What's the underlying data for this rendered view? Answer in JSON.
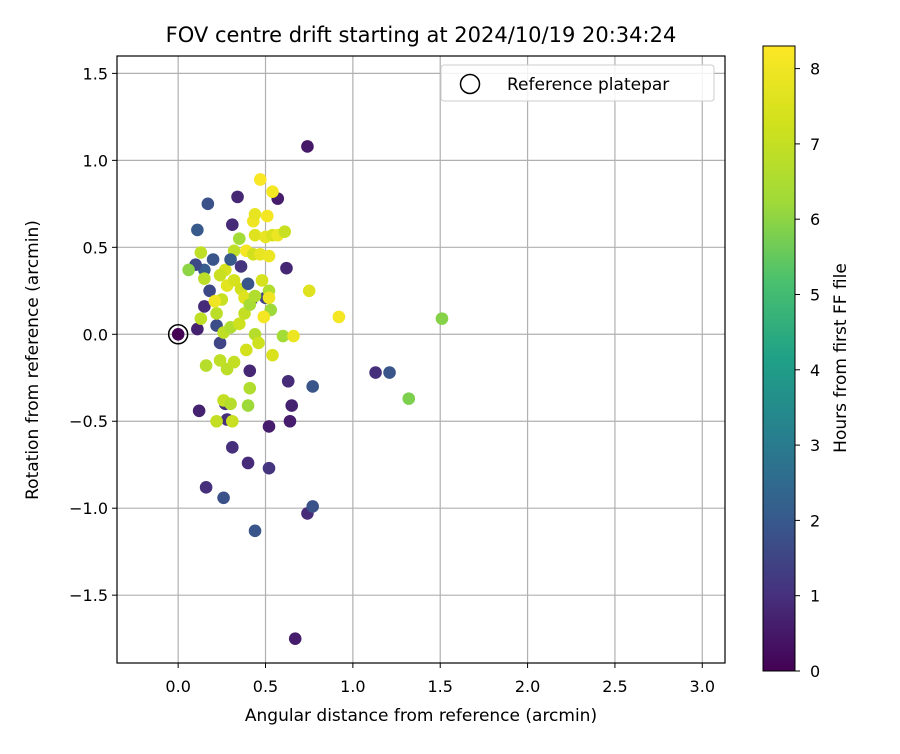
{
  "chart_data": {
    "type": "scatter",
    "title": "FOV centre drift starting at 2024/10/19 20:34:24",
    "xlabel": "Angular distance from reference (arcmin)",
    "ylabel": "Rotation from reference (arcmin)",
    "xlim": [
      -0.35,
      3.13
    ],
    "ylim": [
      -1.89,
      1.6
    ],
    "xticks": [
      0.0,
      0.5,
      1.0,
      1.5,
      2.0,
      2.5,
      3.0
    ],
    "xtick_labels": [
      "0.0",
      "0.5",
      "1.0",
      "1.5",
      "2.0",
      "2.5",
      "3.0"
    ],
    "yticks": [
      -1.5,
      -1.0,
      -0.5,
      0.0,
      0.5,
      1.0,
      1.5
    ],
    "ytick_labels": [
      "−1.5",
      "−1.0",
      "−0.5",
      "0.0",
      "0.5",
      "1.0",
      "1.5"
    ],
    "grid": true,
    "legend": {
      "position": "top-right",
      "entries": [
        "Reference platepar"
      ]
    },
    "reference_point": {
      "x": 0.0,
      "y": 0.0,
      "marker": "open-circle"
    },
    "colorbar": {
      "label": "Hours from first FF file",
      "range": [
        0,
        8.3
      ],
      "ticks": [
        0,
        1,
        2,
        3,
        4,
        5,
        6,
        7,
        8
      ],
      "tick_labels": [
        "0",
        "1",
        "2",
        "3",
        "4",
        "5",
        "6",
        "7",
        "8"
      ],
      "colormap": "viridis"
    },
    "points": [
      {
        "x": 0.0,
        "y": 0.0,
        "t": 0.0
      },
      {
        "x": 0.74,
        "y": 1.08,
        "t": 0.5
      },
      {
        "x": 0.34,
        "y": 0.79,
        "t": 0.8
      },
      {
        "x": 0.57,
        "y": 0.78,
        "t": 0.6
      },
      {
        "x": 0.31,
        "y": 0.63,
        "t": 0.9
      },
      {
        "x": 0.62,
        "y": 0.38,
        "t": 0.8
      },
      {
        "x": 0.63,
        "y": -0.27,
        "t": 0.9
      },
      {
        "x": 0.65,
        "y": -0.41,
        "t": 0.7
      },
      {
        "x": 0.64,
        "y": -0.5,
        "t": 0.6
      },
      {
        "x": 0.52,
        "y": -0.53,
        "t": 0.6
      },
      {
        "x": 0.31,
        "y": -0.65,
        "t": 1.0
      },
      {
        "x": 0.4,
        "y": -0.74,
        "t": 0.9
      },
      {
        "x": 0.52,
        "y": -0.77,
        "t": 1.1
      },
      {
        "x": 0.16,
        "y": -0.88,
        "t": 1.0
      },
      {
        "x": 0.26,
        "y": -0.94,
        "t": 1.8
      },
      {
        "x": 0.44,
        "y": -1.13,
        "t": 1.9
      },
      {
        "x": 0.74,
        "y": -1.03,
        "t": 0.9
      },
      {
        "x": 0.77,
        "y": -0.99,
        "t": 1.8
      },
      {
        "x": 0.67,
        "y": -1.75,
        "t": 0.6
      },
      {
        "x": 0.12,
        "y": -0.44,
        "t": 0.7
      },
      {
        "x": 0.27,
        "y": -0.4,
        "t": 1.0
      },
      {
        "x": 0.28,
        "y": -0.49,
        "t": 1.0
      },
      {
        "x": 0.41,
        "y": -0.21,
        "t": 0.8
      },
      {
        "x": 0.77,
        "y": -0.3,
        "t": 1.9
      },
      {
        "x": 1.13,
        "y": -0.22,
        "t": 1.0
      },
      {
        "x": 1.21,
        "y": -0.22,
        "t": 1.9
      },
      {
        "x": 1.32,
        "y": -0.37,
        "t": 5.8
      },
      {
        "x": 1.51,
        "y": 0.09,
        "t": 5.9
      },
      {
        "x": 0.17,
        "y": 0.75,
        "t": 1.8
      },
      {
        "x": 0.11,
        "y": 0.6,
        "t": 2.0
      },
      {
        "x": 0.15,
        "y": 0.37,
        "t": 2.1
      },
      {
        "x": 0.2,
        "y": 0.43,
        "t": 1.9
      },
      {
        "x": 0.1,
        "y": 0.4,
        "t": 1.6
      },
      {
        "x": 0.18,
        "y": 0.25,
        "t": 1.6
      },
      {
        "x": 0.15,
        "y": 0.16,
        "t": 0.9
      },
      {
        "x": 0.11,
        "y": 0.03,
        "t": 0.7
      },
      {
        "x": 0.22,
        "y": 0.05,
        "t": 1.7
      },
      {
        "x": 0.24,
        "y": -0.05,
        "t": 1.5
      },
      {
        "x": 0.42,
        "y": 0.2,
        "t": 1.2
      },
      {
        "x": 0.5,
        "y": 0.21,
        "t": 1.5
      },
      {
        "x": 0.06,
        "y": 0.37,
        "t": 6.0
      },
      {
        "x": 0.13,
        "y": 0.47,
        "t": 6.9
      },
      {
        "x": 0.15,
        "y": 0.32,
        "t": 6.8
      },
      {
        "x": 0.13,
        "y": 0.09,
        "t": 6.9
      },
      {
        "x": 0.16,
        "y": -0.18,
        "t": 6.7
      },
      {
        "x": 0.22,
        "y": -0.5,
        "t": 7.0
      },
      {
        "x": 0.31,
        "y": -0.5,
        "t": 7.1
      },
      {
        "x": 0.26,
        "y": -0.38,
        "t": 7.0
      },
      {
        "x": 0.3,
        "y": -0.4,
        "t": 6.7
      },
      {
        "x": 0.4,
        "y": -0.41,
        "t": 6.2
      },
      {
        "x": 0.41,
        "y": -0.31,
        "t": 6.6
      },
      {
        "x": 0.28,
        "y": -0.2,
        "t": 6.8
      },
      {
        "x": 0.24,
        "y": -0.15,
        "t": 6.9
      },
      {
        "x": 0.32,
        "y": -0.16,
        "t": 7.0
      },
      {
        "x": 0.39,
        "y": -0.09,
        "t": 7.3
      },
      {
        "x": 0.54,
        "y": -0.12,
        "t": 7.5
      },
      {
        "x": 0.6,
        "y": -0.01,
        "t": 6.3
      },
      {
        "x": 0.66,
        "y": -0.01,
        "t": 7.9
      },
      {
        "x": 0.26,
        "y": 0.01,
        "t": 6.9
      },
      {
        "x": 0.3,
        "y": 0.04,
        "t": 6.6
      },
      {
        "x": 0.35,
        "y": 0.06,
        "t": 7.2
      },
      {
        "x": 0.38,
        "y": 0.12,
        "t": 7.0
      },
      {
        "x": 0.22,
        "y": 0.12,
        "t": 6.8
      },
      {
        "x": 0.25,
        "y": 0.2,
        "t": 7.1
      },
      {
        "x": 0.21,
        "y": 0.19,
        "t": 8.0
      },
      {
        "x": 0.28,
        "y": 0.28,
        "t": 7.7
      },
      {
        "x": 0.32,
        "y": 0.31,
        "t": 7.4
      },
      {
        "x": 0.36,
        "y": 0.26,
        "t": 7.3
      },
      {
        "x": 0.38,
        "y": 0.21,
        "t": 7.6
      },
      {
        "x": 0.41,
        "y": 0.17,
        "t": 6.4
      },
      {
        "x": 0.44,
        "y": 0.22,
        "t": 6.6
      },
      {
        "x": 0.48,
        "y": 0.31,
        "t": 7.4
      },
      {
        "x": 0.52,
        "y": 0.25,
        "t": 6.6
      },
      {
        "x": 0.52,
        "y": 0.21,
        "t": 8.0
      },
      {
        "x": 0.53,
        "y": 0.14,
        "t": 6.2
      },
      {
        "x": 0.49,
        "y": 0.1,
        "t": 8.1
      },
      {
        "x": 0.44,
        "y": 0.0,
        "t": 6.7
      },
      {
        "x": 0.46,
        "y": -0.05,
        "t": 7.2
      },
      {
        "x": 0.35,
        "y": 0.55,
        "t": 6.3
      },
      {
        "x": 0.32,
        "y": 0.48,
        "t": 6.9
      },
      {
        "x": 0.39,
        "y": 0.48,
        "t": 8.1
      },
      {
        "x": 0.43,
        "y": 0.46,
        "t": 7.3
      },
      {
        "x": 0.47,
        "y": 0.46,
        "t": 7.8
      },
      {
        "x": 0.52,
        "y": 0.45,
        "t": 7.9
      },
      {
        "x": 0.44,
        "y": 0.57,
        "t": 7.6
      },
      {
        "x": 0.5,
        "y": 0.56,
        "t": 7.8
      },
      {
        "x": 0.54,
        "y": 0.57,
        "t": 7.5
      },
      {
        "x": 0.57,
        "y": 0.57,
        "t": 7.9
      },
      {
        "x": 0.61,
        "y": 0.59,
        "t": 7.1
      },
      {
        "x": 0.43,
        "y": 0.65,
        "t": 8.0
      },
      {
        "x": 0.44,
        "y": 0.69,
        "t": 7.8
      },
      {
        "x": 0.51,
        "y": 0.68,
        "t": 8.1
      },
      {
        "x": 0.47,
        "y": 0.89,
        "t": 8.2
      },
      {
        "x": 0.54,
        "y": 0.82,
        "t": 8.1
      },
      {
        "x": 0.75,
        "y": 0.25,
        "t": 7.6
      },
      {
        "x": 0.92,
        "y": 0.1,
        "t": 8.1
      },
      {
        "x": 0.27,
        "y": 0.37,
        "t": 7.4
      },
      {
        "x": 0.24,
        "y": 0.34,
        "t": 7.1
      },
      {
        "x": 0.3,
        "y": 0.43,
        "t": 2.0
      },
      {
        "x": 0.36,
        "y": 0.39,
        "t": 1.1
      },
      {
        "x": 0.4,
        "y": 0.29,
        "t": 1.9
      }
    ]
  }
}
